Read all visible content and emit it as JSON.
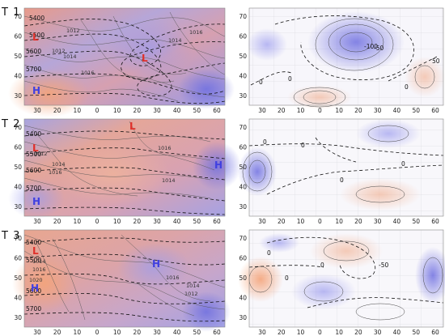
{
  "colors": {
    "low_marker": "#e0302a",
    "high_marker": "#4040e0",
    "warm": "#f0a080",
    "cool": "#8c8ce6",
    "contour_dashed": "#111111",
    "contour_thin": "#555555"
  },
  "axes": {
    "x_ticks": [
      "30",
      "20",
      "10",
      "0",
      "10",
      "20",
      "30",
      "40",
      "50",
      "60"
    ],
    "y_ticks": [
      "30",
      "40",
      "50",
      "60",
      "70"
    ]
  },
  "rows": [
    {
      "label": "T 1",
      "left": {
        "height_labels": [
          "5400",
          "5500",
          "5600",
          "5700"
        ],
        "pressure_labels": [
          "1012",
          "1012",
          "1014",
          "1016",
          "1014",
          "1016"
        ],
        "markers": [
          {
            "type": "low",
            "text": "L"
          },
          {
            "type": "low",
            "text": "L"
          },
          {
            "type": "high",
            "text": "H"
          }
        ]
      },
      "right": {
        "anomaly_labels": [
          "-100",
          "-50",
          "50",
          "0",
          "0",
          "0"
        ]
      }
    },
    {
      "label": "T 2",
      "left": {
        "height_labels": [
          "5400",
          "5500",
          "5600",
          "5700"
        ],
        "pressure_labels": [
          "1012",
          "1014",
          "1016",
          "1016",
          "1014"
        ],
        "markers": [
          {
            "type": "low",
            "text": "L"
          },
          {
            "type": "low",
            "text": "L"
          },
          {
            "type": "high",
            "text": "H"
          },
          {
            "type": "high",
            "text": "H"
          }
        ]
      },
      "right": {
        "anomaly_labels": [
          "0",
          "0",
          "0",
          "0"
        ]
      }
    },
    {
      "label": "T 3",
      "left": {
        "height_labels": [
          "5400",
          "5500",
          "5600",
          "5700"
        ],
        "pressure_labels": [
          "1014",
          "1016",
          "1020",
          "1016",
          "1014",
          "1012"
        ],
        "markers": [
          {
            "type": "low",
            "text": "L"
          },
          {
            "type": "high",
            "text": "H"
          },
          {
            "type": "high",
            "text": "H"
          }
        ]
      },
      "right": {
        "anomaly_labels": [
          "-50",
          "0",
          "0",
          "0"
        ]
      }
    }
  ]
}
